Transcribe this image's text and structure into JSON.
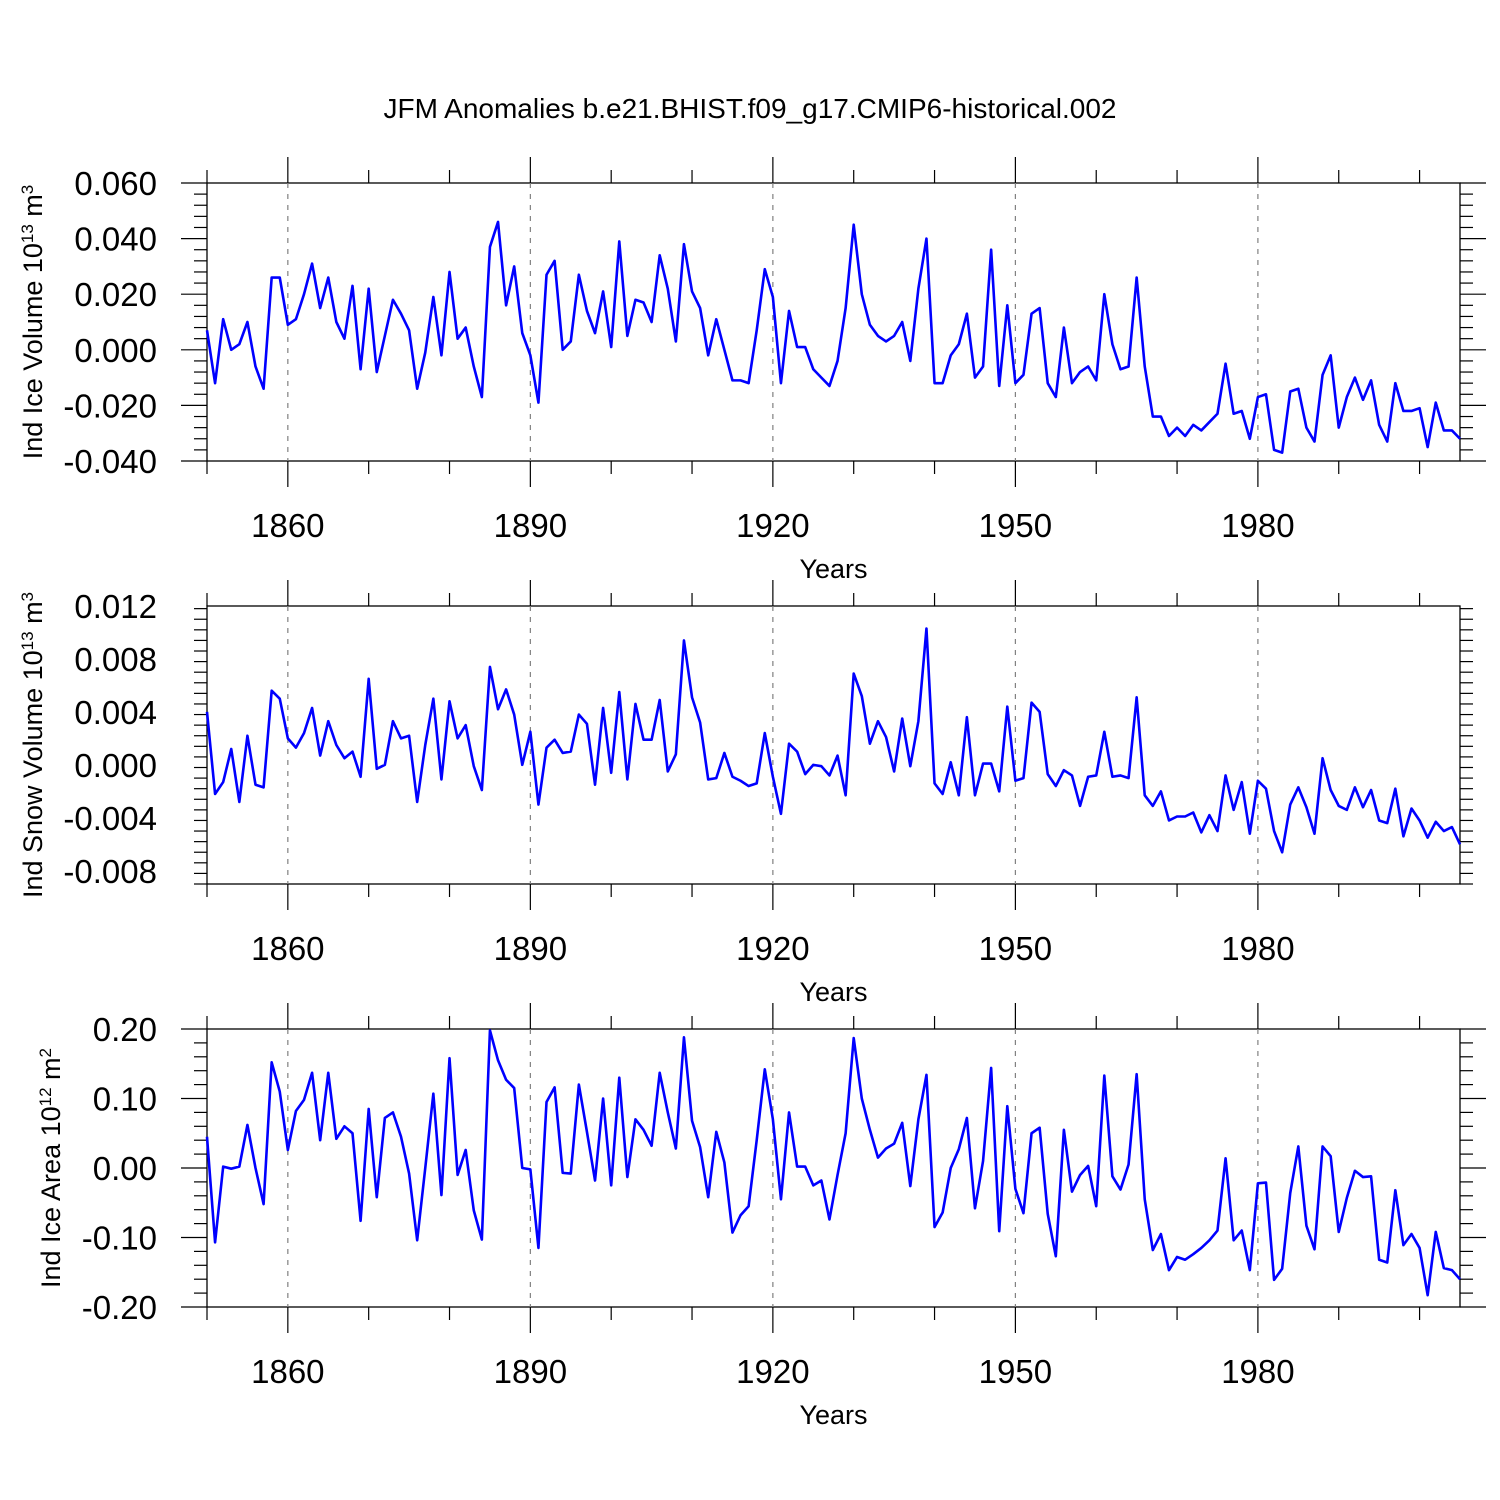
{
  "title": "JFM Anomalies b.e21.BHIST.f09_g17.CMIP6-historical.002",
  "chart_data": [
    {
      "type": "line",
      "ylabel": {
        "main": "Ind Ice Volume 10",
        "exp": "13",
        "unit": " m",
        "unit_exp": "3"
      },
      "xlabel": "Years",
      "xlim": [
        1850,
        2005
      ],
      "ylim": [
        -0.04,
        0.06
      ],
      "ytick_step": 0.02,
      "yticks": [
        "0.060",
        "0.040",
        "0.020",
        "0.000",
        "-0.020",
        "-0.040"
      ],
      "xticks": [
        "1860",
        "1890",
        "1920",
        "1950",
        "1980"
      ],
      "x_start": 1850,
      "values": [
        0.007,
        -0.012,
        0.011,
        0.0,
        0.002,
        0.01,
        -0.006,
        -0.014,
        0.026,
        0.026,
        0.009,
        0.011,
        0.02,
        0.031,
        0.015,
        0.026,
        0.01,
        0.004,
        0.023,
        -0.007,
        0.022,
        -0.008,
        0.005,
        0.018,
        0.013,
        0.007,
        -0.014,
        -0.001,
        0.019,
        -0.002,
        0.028,
        0.004,
        0.008,
        -0.006,
        -0.017,
        0.037,
        0.046,
        0.016,
        0.03,
        0.006,
        -0.002,
        -0.019,
        0.027,
        0.032,
        0.0,
        0.003,
        0.027,
        0.014,
        0.006,
        0.021,
        0.001,
        0.039,
        0.005,
        0.018,
        0.017,
        0.01,
        0.034,
        0.022,
        0.003,
        0.038,
        0.021,
        0.015,
        -0.002,
        0.011,
        0.0,
        -0.011,
        -0.011,
        -0.012,
        0.007,
        0.029,
        0.019,
        -0.012,
        0.014,
        0.001,
        0.001,
        -0.007,
        -0.01,
        -0.013,
        -0.004,
        0.015,
        0.045,
        0.02,
        0.009,
        0.005,
        0.003,
        0.005,
        0.01,
        -0.004,
        0.022,
        0.04,
        -0.012,
        -0.012,
        -0.002,
        0.002,
        0.013,
        -0.01,
        -0.006,
        0.036,
        -0.013,
        0.016,
        -0.012,
        -0.009,
        0.013,
        0.015,
        -0.012,
        -0.017,
        0.008,
        -0.012,
        -0.008,
        -0.006,
        -0.011,
        0.02,
        0.002,
        -0.007,
        -0.006,
        0.026,
        -0.006,
        -0.024,
        -0.024,
        -0.031,
        -0.028,
        -0.031,
        -0.027,
        -0.029,
        -0.026,
        -0.023,
        -0.005,
        -0.023,
        -0.022,
        -0.032,
        -0.017,
        -0.016,
        -0.036,
        -0.037,
        -0.015,
        -0.014,
        -0.028,
        -0.033,
        -0.009,
        -0.002,
        -0.028,
        -0.017,
        -0.01,
        -0.018,
        -0.011,
        -0.027,
        -0.033,
        -0.012,
        -0.022,
        -0.022,
        -0.021,
        -0.035,
        -0.019,
        -0.029,
        -0.029,
        -0.032
      ]
    },
    {
      "type": "line",
      "ylabel": {
        "main": "Ind Snow Volume 10",
        "exp": "13",
        "unit": " m",
        "unit_exp": "3"
      },
      "xlabel": "Years",
      "xlim": [
        1850,
        2005
      ],
      "ylim": [
        -0.009,
        0.012
      ],
      "ytick_step": 0.004,
      "yticks": [
        "0.012",
        "0.008",
        "0.004",
        "0.000",
        "-0.004",
        "-0.008"
      ],
      "xticks": [
        "1860",
        "1890",
        "1920",
        "1950",
        "1980"
      ],
      "x_start": 1850,
      "values": [
        0.004,
        -0.0022,
        -0.0013,
        0.0012,
        -0.0028,
        0.0022,
        -0.0015,
        -0.0017,
        0.0056,
        0.005,
        0.002,
        0.0013,
        0.0024,
        0.0043,
        0.0007,
        0.0033,
        0.0015,
        0.0005,
        0.001,
        -0.0009,
        0.0065,
        -0.0003,
        0.0,
        0.0033,
        0.002,
        0.0022,
        -0.0028,
        0.0015,
        0.005,
        -0.0011,
        0.0048,
        0.002,
        0.003,
        -0.0001,
        -0.0019,
        0.0074,
        0.0042,
        0.0057,
        0.0038,
        0.0,
        0.0025,
        -0.003,
        0.0013,
        0.0019,
        0.0009,
        0.001,
        0.0038,
        0.0031,
        -0.0015,
        0.0043,
        -0.0006,
        0.0055,
        -0.0011,
        0.0046,
        0.0019,
        0.0019,
        0.0049,
        -0.0005,
        0.0008,
        0.0094,
        0.0051,
        0.0032,
        -0.0011,
        -0.001,
        0.0009,
        -0.0009,
        -0.0012,
        -0.0016,
        -0.0014,
        0.0024,
        -0.0009,
        -0.0037,
        0.0016,
        0.001,
        -0.0007,
        0.0,
        -0.0001,
        -0.0008,
        0.0007,
        -0.0023,
        0.0069,
        0.0052,
        0.0016,
        0.0033,
        0.0021,
        -0.0005,
        0.0035,
        -0.0001,
        0.0033,
        0.0103,
        -0.0014,
        -0.0022,
        0.0002,
        -0.0023,
        0.0036,
        -0.0023,
        0.0001,
        0.0001,
        -0.002,
        0.0044,
        -0.0012,
        -0.001,
        0.0047,
        0.004,
        -0.0007,
        -0.0016,
        -0.0004,
        -0.0008,
        -0.0031,
        -0.0009,
        -0.0008,
        0.0025,
        -0.0009,
        -0.0008,
        -0.001,
        0.0051,
        -0.0023,
        -0.0031,
        -0.002,
        -0.0042,
        -0.0039,
        -0.0039,
        -0.0036,
        -0.0051,
        -0.0038,
        -0.005,
        -0.0008,
        -0.0034,
        -0.0013,
        -0.0052,
        -0.0012,
        -0.0018,
        -0.005,
        -0.0066,
        -0.003,
        -0.0017,
        -0.0032,
        -0.0052,
        0.0005,
        -0.0019,
        -0.0031,
        -0.0034,
        -0.0017,
        -0.0032,
        -0.0019,
        -0.0042,
        -0.0044,
        -0.0018,
        -0.0054,
        -0.0033,
        -0.0042,
        -0.0055,
        -0.0043,
        -0.005,
        -0.0047,
        -0.006
      ]
    },
    {
      "type": "line",
      "ylabel": {
        "main": "Ind Ice Area 10",
        "exp": "12",
        "unit": " m",
        "unit_exp": "2"
      },
      "xlabel": "Years",
      "xlim": [
        1850,
        2005
      ],
      "ylim": [
        -0.2,
        0.2
      ],
      "ytick_step": 0.1,
      "yticks": [
        "0.20",
        "0.10",
        "0.00",
        "-0.10",
        "-0.20"
      ],
      "xticks": [
        "1860",
        "1890",
        "1920",
        "1950",
        "1980"
      ],
      "x_start": 1850,
      "values": [
        0.045,
        -0.107,
        0.002,
        -0.001,
        0.002,
        0.062,
        0.0,
        -0.052,
        0.152,
        0.11,
        0.026,
        0.082,
        0.098,
        0.137,
        0.04,
        0.137,
        0.042,
        0.06,
        0.05,
        -0.076,
        0.085,
        -0.042,
        0.072,
        0.08,
        0.045,
        -0.008,
        -0.104,
        0.0,
        0.107,
        -0.039,
        0.158,
        -0.01,
        0.026,
        -0.061,
        -0.103,
        0.198,
        0.155,
        0.127,
        0.115,
        0.0,
        -0.002,
        -0.115,
        0.095,
        0.116,
        -0.007,
        -0.008,
        0.12,
        0.052,
        -0.018,
        0.1,
        -0.025,
        0.13,
        -0.013,
        0.07,
        0.055,
        0.032,
        0.137,
        0.08,
        0.028,
        0.188,
        0.068,
        0.03,
        -0.042,
        0.052,
        0.008,
        -0.093,
        -0.068,
        -0.055,
        0.04,
        0.142,
        0.07,
        -0.045,
        0.08,
        0.002,
        0.002,
        -0.025,
        -0.018,
        -0.074,
        -0.01,
        0.05,
        0.187,
        0.1,
        0.055,
        0.015,
        0.028,
        0.035,
        0.065,
        -0.026,
        0.07,
        0.134,
        -0.085,
        -0.064,
        0.0,
        0.027,
        0.072,
        -0.058,
        0.01,
        0.144,
        -0.091,
        0.089,
        -0.03,
        -0.065,
        0.05,
        0.058,
        -0.066,
        -0.127,
        0.055,
        -0.034,
        -0.01,
        0.003,
        -0.055,
        0.133,
        -0.012,
        -0.031,
        0.005,
        0.135,
        -0.045,
        -0.118,
        -0.095,
        -0.147,
        -0.128,
        -0.132,
        -0.124,
        -0.115,
        -0.104,
        -0.09,
        0.014,
        -0.104,
        -0.09,
        -0.147,
        -0.022,
        -0.021,
        -0.161,
        -0.145,
        -0.036,
        0.031,
        -0.083,
        -0.117,
        0.031,
        0.017,
        -0.092,
        -0.043,
        -0.004,
        -0.013,
        -0.012,
        -0.132,
        -0.136,
        -0.032,
        -0.111,
        -0.095,
        -0.115,
        -0.183,
        -0.092,
        -0.144,
        -0.147,
        -0.16
      ]
    }
  ]
}
